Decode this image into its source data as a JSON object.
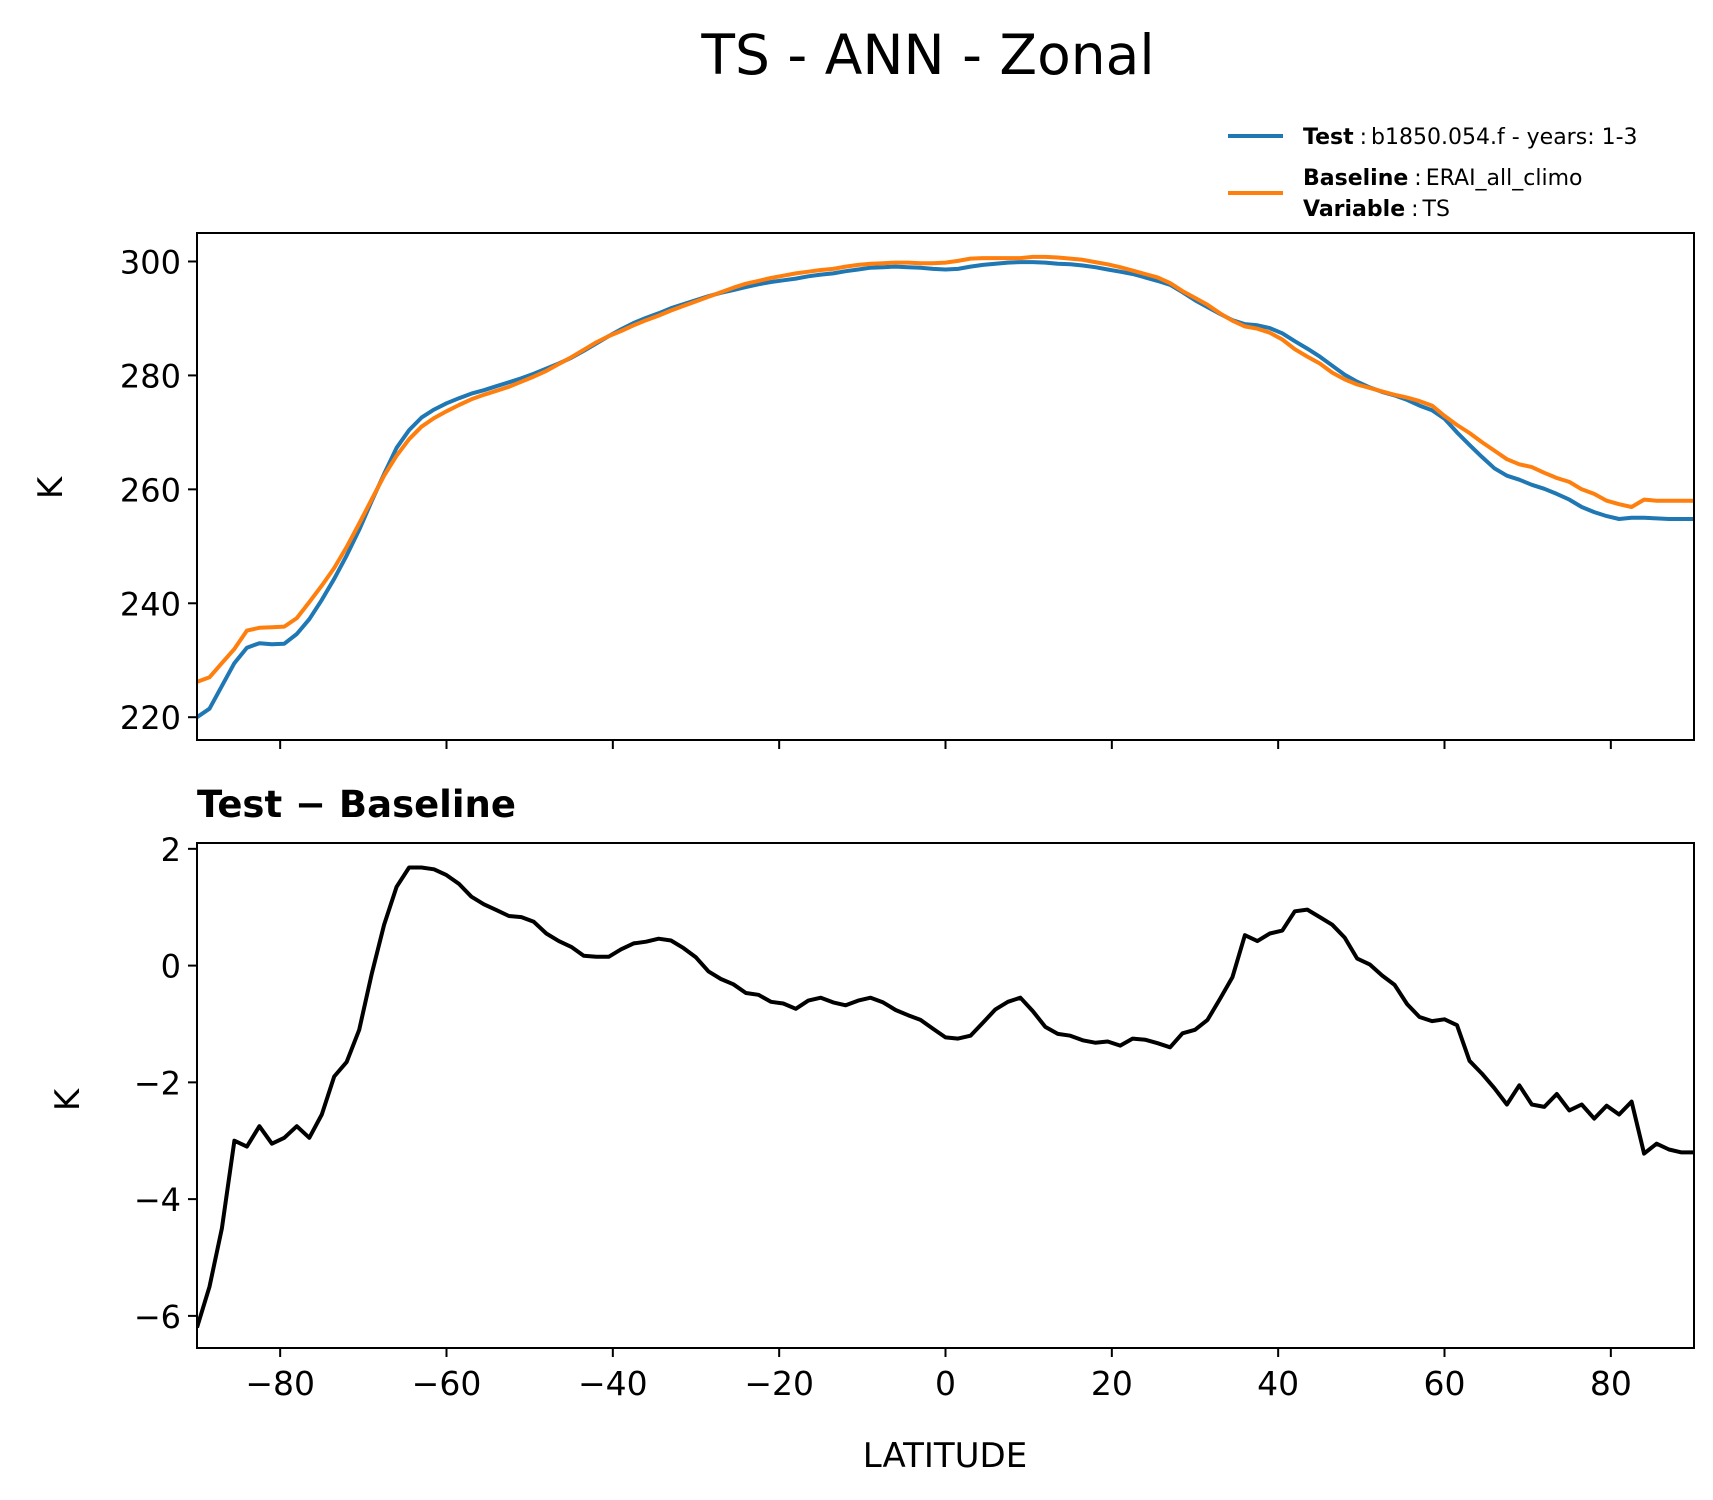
{
  "figure": {
    "title": "TS - ANN - Zonal",
    "legend": {
      "test_key": "Test",
      "test_value": "b1850.054.f - years: 1-3",
      "baseline_key": "Baseline",
      "baseline_value": "ERAI_all_climo",
      "variable_key": "Variable",
      "variable_value": "TS",
      "separator": ":"
    },
    "colors": {
      "test": "#1f77b4",
      "baseline": "#ff7f0e",
      "diff": "#000000"
    }
  },
  "chart_data": [
    {
      "type": "line",
      "title": "",
      "xlabel": "",
      "ylabel": "K",
      "xlim": [
        -90,
        90
      ],
      "ylim": [
        216,
        305
      ],
      "yticks": [
        220,
        240,
        260,
        280,
        300
      ],
      "ytick_labels": [
        "220",
        "240",
        "260",
        "280",
        "300"
      ],
      "xticks": [
        -80,
        -60,
        -40,
        -20,
        0,
        20,
        40,
        60,
        80
      ],
      "grid": false,
      "legend_position": "above-right",
      "series": [
        {
          "name": "Test",
          "x": [
            -90,
            -88.5,
            -87,
            -85.5,
            -84,
            -82.5,
            -81,
            -79.5,
            -78,
            -76.5,
            -75,
            -73.5,
            -72,
            -70.5,
            -69,
            -67.5,
            -66,
            -64.5,
            -63,
            -61.5,
            -60,
            -58.5,
            -57,
            -55.5,
            -54,
            -52.5,
            -51,
            -49.5,
            -48,
            -46.5,
            -45,
            -43.5,
            -42,
            -40.5,
            -39,
            -37.5,
            -36,
            -34.5,
            -33,
            -31.5,
            -30,
            -28.5,
            -27,
            -25.5,
            -24,
            -22.5,
            -21,
            -19.5,
            -18,
            -16.5,
            -15,
            -13.5,
            -12,
            -10.5,
            -9,
            -7.5,
            -6,
            -4.5,
            -3,
            -1.5,
            0,
            1.5,
            3,
            4.5,
            6,
            7.5,
            9,
            10.5,
            12,
            13.5,
            15,
            16.5,
            18,
            19.5,
            21,
            22.5,
            24,
            25.5,
            27,
            28.5,
            30,
            31.5,
            33,
            34.5,
            36,
            37.5,
            39,
            40.5,
            42,
            43.5,
            45,
            46.5,
            48,
            49.5,
            51,
            52.5,
            54,
            55.5,
            57,
            58.5,
            60,
            61.5,
            63,
            64.5,
            66,
            67.5,
            69,
            70.5,
            72,
            73.5,
            75,
            76.5,
            78,
            79.5,
            81,
            82.5,
            84,
            85.5,
            87,
            88.5,
            90
          ],
          "values": [
            220.0,
            221.5,
            225.5,
            229.5,
            232.2,
            233.0,
            232.8,
            232.9,
            234.6,
            237.2,
            240.6,
            244.3,
            248.4,
            252.9,
            257.9,
            262.7,
            267.3,
            270.4,
            272.6,
            274.0,
            275.1,
            276.0,
            276.8,
            277.4,
            278.1,
            278.8,
            279.5,
            280.3,
            281.2,
            282.1,
            283.1,
            284.3,
            285.6,
            286.9,
            288.1,
            289.2,
            290.1,
            290.9,
            291.8,
            292.5,
            293.2,
            293.9,
            294.5,
            295.0,
            295.5,
            296.0,
            296.4,
            296.7,
            297.0,
            297.4,
            297.7,
            297.9,
            298.3,
            298.6,
            298.9,
            299.0,
            299.1,
            299.0,
            298.9,
            298.7,
            298.6,
            298.7,
            299.1,
            299.4,
            299.6,
            299.8,
            299.9,
            299.9,
            299.8,
            299.6,
            299.5,
            299.3,
            299.0,
            298.6,
            298.2,
            297.8,
            297.2,
            296.6,
            295.9,
            294.6,
            293.2,
            292.0,
            290.8,
            289.7,
            289.0,
            288.8,
            288.3,
            287.4,
            286.0,
            284.7,
            283.3,
            281.7,
            280.1,
            278.9,
            277.9,
            277.1,
            276.5,
            275.7,
            274.7,
            273.9,
            272.4,
            270.0,
            267.8,
            265.7,
            263.7,
            262.4,
            261.7,
            260.8,
            260.1,
            259.2,
            258.2,
            256.9,
            256.0,
            255.3,
            254.8,
            255.0,
            255.0,
            254.9,
            254.8,
            254.8,
            254.8
          ]
        },
        {
          "name": "Baseline",
          "x": [
            -90,
            -88.5,
            -87,
            -85.5,
            -84,
            -82.5,
            -81,
            -79.5,
            -78,
            -76.5,
            -75,
            -73.5,
            -72,
            -70.5,
            -69,
            -67.5,
            -66,
            -64.5,
            -63,
            -61.5,
            -60,
            -58.5,
            -57,
            -55.5,
            -54,
            -52.5,
            -51,
            -49.5,
            -48,
            -46.5,
            -45,
            -43.5,
            -42,
            -40.5,
            -39,
            -37.5,
            -36,
            -34.5,
            -33,
            -31.5,
            -30,
            -28.5,
            -27,
            -25.5,
            -24,
            -22.5,
            -21,
            -19.5,
            -18,
            -16.5,
            -15,
            -13.5,
            -12,
            -10.5,
            -9,
            -7.5,
            -6,
            -4.5,
            -3,
            -1.5,
            0,
            1.5,
            3,
            4.5,
            6,
            7.5,
            9,
            10.5,
            12,
            13.5,
            15,
            16.5,
            18,
            19.5,
            21,
            22.5,
            24,
            25.5,
            27,
            28.5,
            30,
            31.5,
            33,
            34.5,
            36,
            37.5,
            39,
            40.5,
            42,
            43.5,
            45,
            46.5,
            48,
            49.5,
            51,
            52.5,
            54,
            55.5,
            57,
            58.5,
            60,
            61.5,
            63,
            64.5,
            66,
            67.5,
            69,
            70.5,
            72,
            73.5,
            75,
            76.5,
            78,
            79.5,
            81,
            82.5,
            84,
            85.5,
            87,
            88.5,
            90
          ],
          "values": [
            226.2,
            227.0,
            229.5,
            232.0,
            235.2,
            235.7,
            235.8,
            235.9,
            237.4,
            240.2,
            243.1,
            246.2,
            249.9,
            254.0,
            258.2,
            262.4,
            265.9,
            268.8,
            271.0,
            272.5,
            273.7,
            274.8,
            275.8,
            276.6,
            277.3,
            278.0,
            278.9,
            279.8,
            280.8,
            282.0,
            283.2,
            284.5,
            285.8,
            286.9,
            287.8,
            288.8,
            289.7,
            290.5,
            291.4,
            292.2,
            293.0,
            293.8,
            294.6,
            295.4,
            296.1,
            296.6,
            297.1,
            297.5,
            297.9,
            298.2,
            298.5,
            298.7,
            299.1,
            299.4,
            299.6,
            299.7,
            299.8,
            299.8,
            299.7,
            299.7,
            299.8,
            300.1,
            300.5,
            300.6,
            300.6,
            300.6,
            300.6,
            300.8,
            300.8,
            300.7,
            300.5,
            300.3,
            299.9,
            299.5,
            299.0,
            298.4,
            297.8,
            297.2,
            296.2,
            294.8,
            293.6,
            292.4,
            290.9,
            289.6,
            288.6,
            288.2,
            287.5,
            286.3,
            284.6,
            283.3,
            282.1,
            280.5,
            279.3,
            278.4,
            277.8,
            277.2,
            276.6,
            276.1,
            275.5,
            274.7,
            272.9,
            271.3,
            269.9,
            268.3,
            266.8,
            265.3,
            264.4,
            263.9,
            262.9,
            262.0,
            261.3,
            260.0,
            259.2,
            258.0,
            257.4,
            256.9,
            258.2,
            258.0,
            258.0,
            258.0,
            258.0
          ]
        }
      ]
    },
    {
      "type": "line",
      "title": "Test − Baseline",
      "xlabel": "LATITUDE",
      "ylabel": "K",
      "xlim": [
        -90,
        90
      ],
      "ylim": [
        -6.55,
        2.1
      ],
      "yticks": [
        -6,
        -4,
        -2,
        0,
        2
      ],
      "ytick_labels": [
        "−6",
        "−4",
        "−2",
        "0",
        "2"
      ],
      "xticks": [
        -80,
        -60,
        -40,
        -20,
        0,
        20,
        40,
        60,
        80
      ],
      "xtick_labels": [
        "−80",
        "−60",
        "−40",
        "−20",
        "0",
        "20",
        "40",
        "60",
        "80"
      ],
      "grid": false,
      "series": [
        {
          "name": "Test − Baseline",
          "x": [
            -90,
            -88.5,
            -87,
            -85.5,
            -84,
            -82.5,
            -81,
            -79.5,
            -78,
            -76.5,
            -75,
            -73.5,
            -72,
            -70.5,
            -69,
            -67.5,
            -66,
            -64.5,
            -63,
            -61.5,
            -60,
            -58.5,
            -57,
            -55.5,
            -54,
            -52.5,
            -51,
            -49.5,
            -48,
            -46.5,
            -45,
            -43.5,
            -42,
            -40.5,
            -39,
            -37.5,
            -36,
            -34.5,
            -33,
            -31.5,
            -30,
            -28.5,
            -27,
            -25.5,
            -24,
            -22.5,
            -21,
            -19.5,
            -18,
            -16.5,
            -15,
            -13.5,
            -12,
            -10.5,
            -9,
            -7.5,
            -6,
            -4.5,
            -3,
            -1.5,
            0,
            1.5,
            3,
            4.5,
            6,
            7.5,
            9,
            10.5,
            12,
            13.5,
            15,
            16.5,
            18,
            19.5,
            21,
            22.5,
            24,
            25.5,
            27,
            28.5,
            30,
            31.5,
            33,
            34.5,
            36,
            37.5,
            39,
            40.5,
            42,
            43.5,
            45,
            46.5,
            48,
            49.5,
            51,
            52.5,
            54,
            55.5,
            57,
            58.5,
            60,
            61.5,
            63,
            64.5,
            66,
            67.5,
            69,
            70.5,
            72,
            73.5,
            75,
            76.5,
            78,
            79.5,
            81,
            82.5,
            84,
            85.5,
            87,
            88.5,
            90
          ],
          "values": [
            -6.2,
            -5.5,
            -4.5,
            -3.0,
            -3.1,
            -2.75,
            -3.05,
            -2.95,
            -2.75,
            -2.95,
            -2.55,
            -1.9,
            -1.65,
            -1.1,
            -0.15,
            0.7,
            1.35,
            1.68,
            1.68,
            1.65,
            1.55,
            1.4,
            1.18,
            1.05,
            0.95,
            0.85,
            0.83,
            0.75,
            0.55,
            0.42,
            0.32,
            0.17,
            0.15,
            0.15,
            0.28,
            0.38,
            0.41,
            0.46,
            0.43,
            0.3,
            0.14,
            -0.1,
            -0.23,
            -0.32,
            -0.47,
            -0.5,
            -0.62,
            -0.65,
            -0.74,
            -0.6,
            -0.55,
            -0.63,
            -0.68,
            -0.6,
            -0.55,
            -0.63,
            -0.76,
            -0.85,
            -0.93,
            -1.08,
            -1.23,
            -1.25,
            -1.2,
            -0.98,
            -0.75,
            -0.62,
            -0.55,
            -0.78,
            -1.05,
            -1.17,
            -1.2,
            -1.28,
            -1.32,
            -1.3,
            -1.37,
            -1.25,
            -1.27,
            -1.33,
            -1.4,
            -1.16,
            -1.1,
            -0.93,
            -0.57,
            -0.2,
            0.52,
            0.42,
            0.55,
            0.6,
            0.93,
            0.96,
            0.83,
            0.7,
            0.48,
            0.12,
            0.02,
            -0.17,
            -0.33,
            -0.66,
            -0.88,
            -0.95,
            -0.92,
            -1.02,
            -1.63,
            -1.85,
            -2.1,
            -2.38,
            -2.05,
            -2.38,
            -2.42,
            -2.2,
            -2.48,
            -2.38,
            -2.62,
            -2.4,
            -2.55,
            -2.33,
            -3.22,
            -3.05,
            -3.15,
            -3.2,
            -3.2
          ]
        }
      ]
    }
  ]
}
